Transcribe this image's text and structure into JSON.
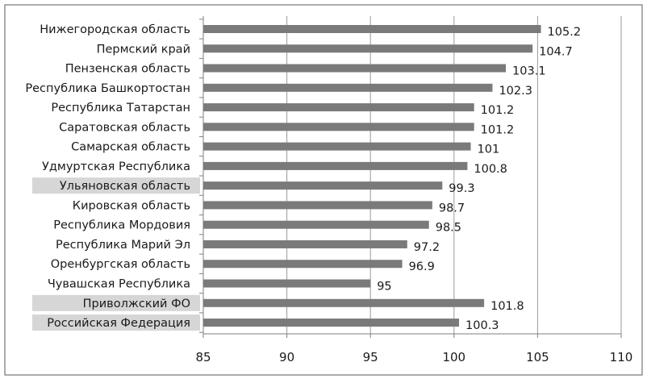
{
  "chart_data": {
    "type": "bar",
    "orientation": "horizontal",
    "title": "",
    "xlabel": "",
    "ylabel": "",
    "categories": [
      "Нижегородская область",
      "Пермский край",
      "Пензенская область",
      "Республика Башкортостан",
      "Республика Татарстан",
      "Саратовская область",
      "Самарская область",
      "Удмуртская Республика",
      "Ульяновская область",
      "Кировская область",
      "Республика Мордовия",
      "Республика Марий Эл",
      "Оренбургская область",
      "Чувашская Республика",
      "Приволжский ФО",
      "Российская Федерация"
    ],
    "values": [
      105.2,
      104.7,
      103.1,
      102.3,
      101.2,
      101.2,
      101,
      100.8,
      99.3,
      98.7,
      98.5,
      97.2,
      96.9,
      95,
      101.8,
      100.3
    ],
    "value_labels": [
      "105.2",
      "104.7",
      "103.1",
      "102.3",
      "101.2",
      "101.2",
      "101",
      "100.8",
      "99.3",
      "98.7",
      "98.5",
      "97.2",
      "96.9",
      "95",
      "101.8",
      "100.3"
    ],
    "highlighted_categories": [
      "Ульяновская область",
      "Приволжский ФО",
      "Российская Федерация"
    ],
    "xlim": [
      85,
      110
    ],
    "xticks": [
      85,
      90,
      95,
      100,
      105,
      110
    ],
    "xtick_labels": [
      "85",
      "90",
      "95",
      "100",
      "105",
      "110"
    ],
    "grid": "vertical",
    "legend": "none",
    "colors": {
      "bar": "#7a7a7a",
      "highlight": "#d6d6d6",
      "grid": "#9a9a9a",
      "axis": "#7f7f7f",
      "frame": "#5a5a5a"
    }
  }
}
